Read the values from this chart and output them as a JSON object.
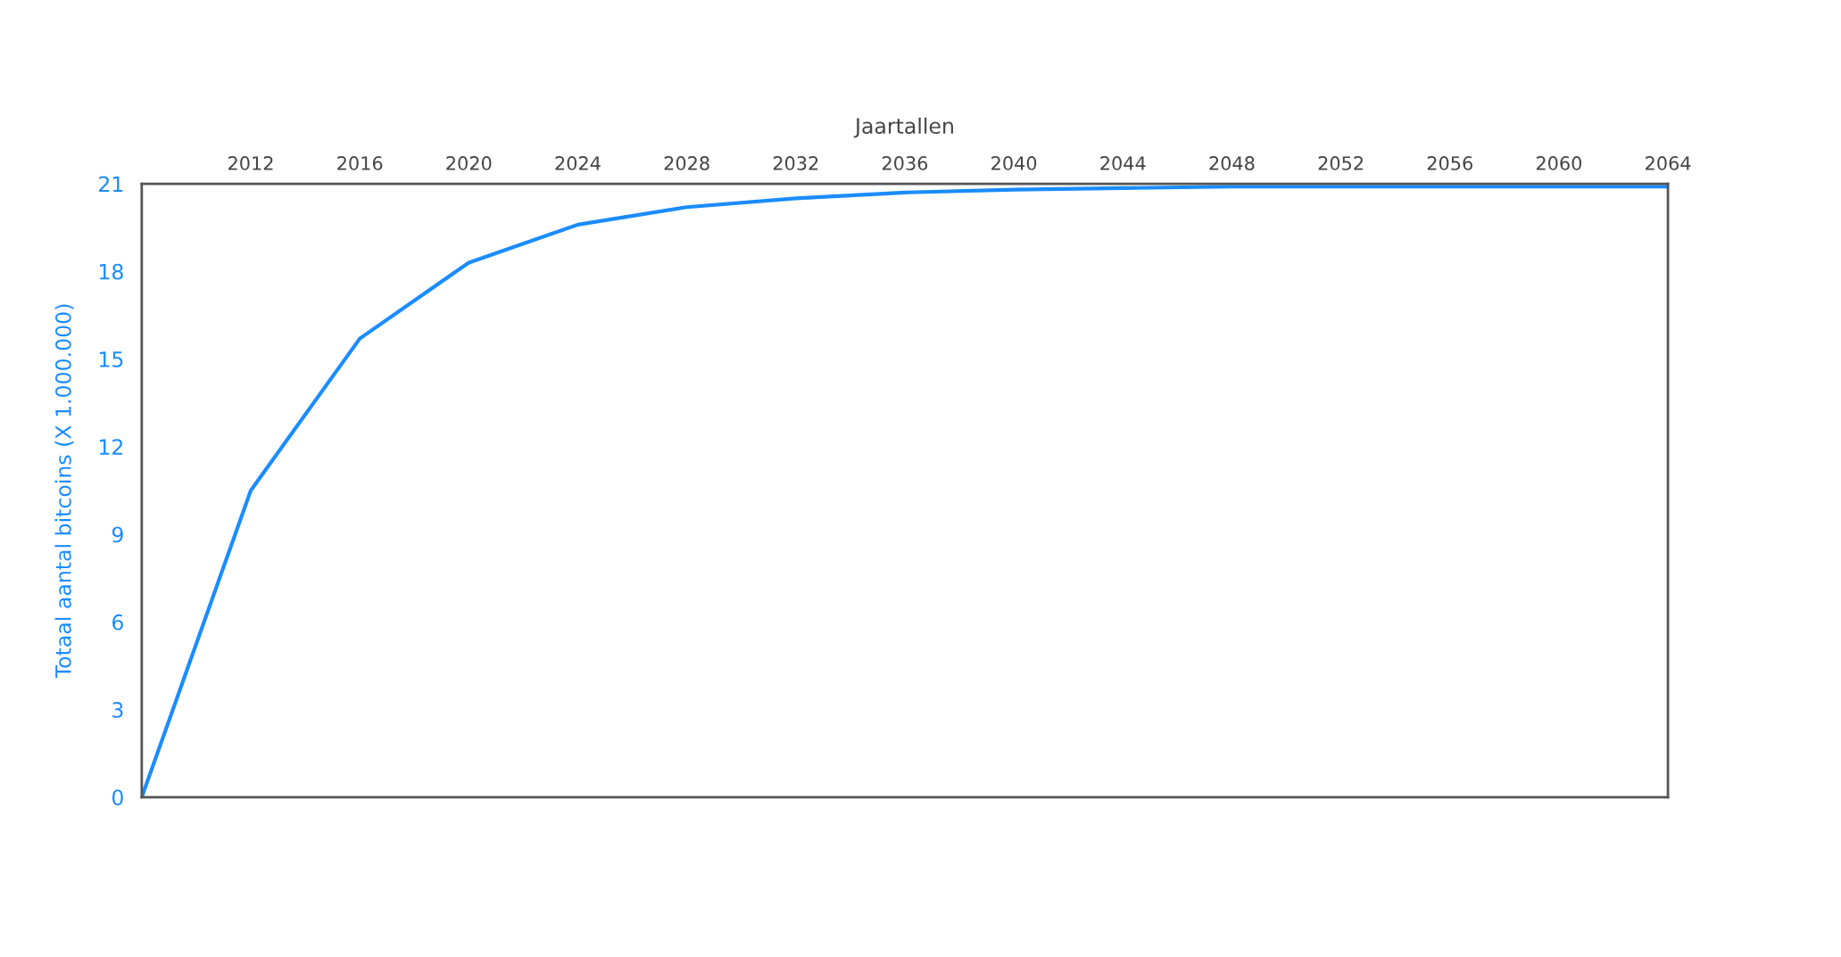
{
  "chart_data": {
    "type": "line",
    "xlabel": "Jaartallen",
    "ylabel": "Totaal aantal bitcoins (X 1.000.000)",
    "x": [
      2008,
      2012,
      2016,
      2020,
      2024,
      2028,
      2032,
      2036,
      2040,
      2044,
      2048,
      2052,
      2056,
      2060,
      2064
    ],
    "series": [
      {
        "color": "#1a8cff",
        "values": [
          0,
          10.5,
          15.7,
          18.3,
          19.6,
          20.2,
          20.5,
          20.7,
          20.8,
          20.85,
          20.9,
          20.9,
          20.9,
          20.9,
          20.9
        ]
      }
    ],
    "xlim": [
      2008,
      2064
    ],
    "xticks": [
      2012,
      2016,
      2020,
      2024,
      2028,
      2032,
      2036,
      2040,
      2044,
      2048,
      2052,
      2056,
      2060,
      2064
    ],
    "ylim": [
      0,
      21
    ],
    "yticks": [
      0,
      3,
      6,
      9,
      12,
      15,
      18,
      21
    ],
    "grid": false,
    "legend": false,
    "marker": "none",
    "line_style": "solid"
  }
}
